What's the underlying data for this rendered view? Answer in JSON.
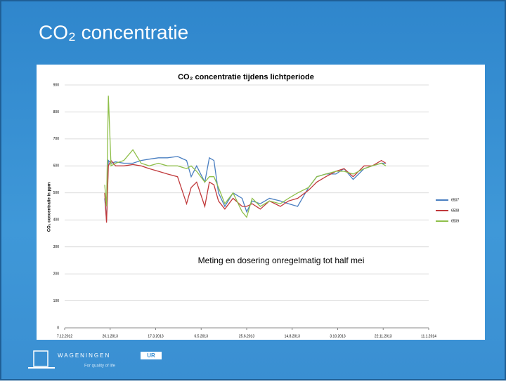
{
  "slide_title": "CO₂ concentratie",
  "footer": {
    "brand": "WAGENINGEN",
    "brand_box": "UR",
    "tagline": "For quality of life"
  },
  "chart_data": {
    "type": "line",
    "title": "CO₂ concentratie tijdens lichtperiode",
    "y_label": "CO₂ concentratie in ppm",
    "annotation": "Meting en dosering onregelmatig tot half mei",
    "x": [
      "2013-01-20",
      "2013-01-22",
      "2013-01-24",
      "2013-01-27",
      "2013-02-01",
      "2013-02-10",
      "2013-02-20",
      "2013-03-01",
      "2013-03-10",
      "2013-03-20",
      "2013-03-30",
      "2013-04-10",
      "2013-04-20",
      "2013-04-25",
      "2013-05-01",
      "2013-05-10",
      "2013-05-15",
      "2013-05-20",
      "2013-05-25",
      "2013-06-01",
      "2013-06-10",
      "2013-06-20",
      "2013-06-25",
      "2013-07-01",
      "2013-07-10",
      "2013-07-20",
      "2013-08-01",
      "2013-08-10",
      "2013-08-20",
      "2013-09-01",
      "2013-09-10",
      "2013-09-20",
      "2013-10-01",
      "2013-10-10",
      "2013-10-20",
      "2013-11-01",
      "2013-11-10",
      "2013-11-20",
      "2013-11-25"
    ],
    "series": [
      {
        "name": "6507",
        "color": "#4a7fc1",
        "values": [
          480,
          400,
          620,
          610,
          615,
          610,
          610,
          620,
          625,
          630,
          630,
          635,
          620,
          560,
          600,
          540,
          630,
          620,
          500,
          450,
          500,
          480,
          430,
          470,
          460,
          480,
          470,
          460,
          450,
          520,
          560,
          570,
          570,
          590,
          550,
          590,
          600,
          610,
          610
        ]
      },
      {
        "name": "6508",
        "color": "#c0393b",
        "values": [
          500,
          390,
          600,
          620,
          600,
          600,
          605,
          600,
          590,
          580,
          570,
          560,
          460,
          520,
          540,
          450,
          540,
          530,
          470,
          440,
          480,
          450,
          450,
          460,
          440,
          470,
          450,
          470,
          480,
          510,
          540,
          560,
          580,
          590,
          560,
          600,
          600,
          620,
          610
        ]
      },
      {
        "name": "6509",
        "color": "#8fbf4a",
        "values": [
          530,
          450,
          860,
          600,
          610,
          620,
          660,
          610,
          600,
          610,
          600,
          600,
          590,
          600,
          580,
          540,
          560,
          560,
          520,
          460,
          500,
          430,
          410,
          480,
          450,
          470,
          460,
          480,
          500,
          520,
          560,
          570,
          580,
          580,
          570,
          590,
          600,
          610,
          600
        ]
      }
    ],
    "xlim": [
      "2012-12-07",
      "2014-01-11"
    ],
    "xticks": [
      {
        "value": "2012-12-07",
        "label": "7.12.2012"
      },
      {
        "value": "2013-01-26",
        "label": "26.1.2013"
      },
      {
        "value": "2013-03-17",
        "label": "17.3.2013"
      },
      {
        "value": "2013-05-06",
        "label": "6.5.2013"
      },
      {
        "value": "2013-06-25",
        "label": "25.6.2013"
      },
      {
        "value": "2013-08-14",
        "label": "14.8.2013"
      },
      {
        "value": "2013-10-03",
        "label": "3.10.2013"
      },
      {
        "value": "2013-11-22",
        "label": "22.11.2013"
      },
      {
        "value": "2014-01-11",
        "label": "11.1.2014"
      }
    ],
    "ylim": [
      0,
      900
    ],
    "yticks": [
      0,
      100,
      200,
      300,
      400,
      500,
      600,
      700,
      800,
      900
    ],
    "grid": true,
    "legend": "right"
  }
}
